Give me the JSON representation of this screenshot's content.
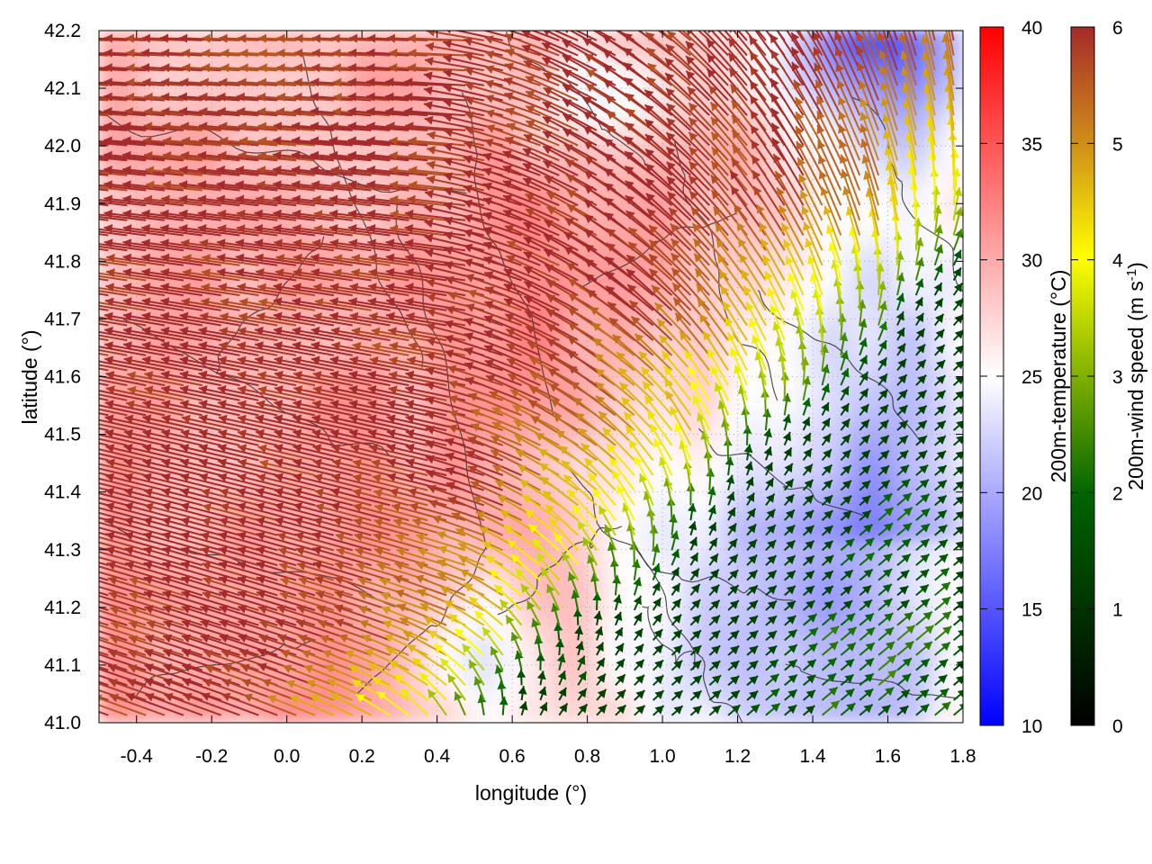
{
  "chart_data": {
    "type": "heatmap",
    "title": "",
    "xlabel": "longitude (°)",
    "ylabel": "latitude (°)",
    "xlim": [
      -0.5,
      1.8
    ],
    "ylim": [
      41.0,
      42.2
    ],
    "x_ticks": [
      "-0.4",
      "-0.2",
      "0.0",
      "0.2",
      "0.4",
      "0.6",
      "0.8",
      "1.0",
      "1.2",
      "1.4",
      "1.6",
      "1.8"
    ],
    "x_tick_values": [
      -0.4,
      -0.2,
      0.0,
      0.2,
      0.4,
      0.6,
      0.8,
      1.0,
      1.2,
      1.4,
      1.6,
      1.8
    ],
    "y_ticks": [
      "41.0",
      "41.1",
      "41.2",
      "41.3",
      "41.4",
      "41.5",
      "41.6",
      "41.7",
      "41.8",
      "41.9",
      "42.0",
      "42.1",
      "42.2"
    ],
    "y_tick_values": [
      41.0,
      41.1,
      41.2,
      41.3,
      41.4,
      41.5,
      41.6,
      41.7,
      41.8,
      41.9,
      42.0,
      42.1,
      42.2
    ],
    "temperature_colorbar": {
      "label": "200m-temperature (°C)",
      "range": [
        10,
        40
      ],
      "ticks": [
        "10",
        "15",
        "20",
        "25",
        "30",
        "35",
        "40"
      ],
      "tick_values": [
        10,
        15,
        20,
        25,
        30,
        35,
        40
      ],
      "colors": [
        "#0000ff",
        "#ffffff",
        "#ff0000"
      ]
    },
    "wind_colorbar": {
      "label_main": "200m-wind speed (m s",
      "label_sup": "-1",
      "label_end": ")",
      "range": [
        0,
        6
      ],
      "ticks": [
        "0",
        "1",
        "2",
        "3",
        "4",
        "5",
        "6"
      ],
      "tick_values": [
        0,
        1,
        2,
        3,
        4,
        5,
        6
      ],
      "colors": [
        "#000000",
        "#006400",
        "#80b000",
        "#ffff00",
        "#d09018",
        "#a52a2a"
      ]
    },
    "series": [
      {
        "name": "200m-temperature",
        "kind": "filled field",
        "pattern": "warm (28-32 °C) west and north-west of ~0.8°E, cool (17-22 °C) in the south-east quadrant and north-east corner near 1.5°E 42.2°N"
      },
      {
        "name": "terrain elevation",
        "kind": "contour lines",
        "color": "#333333"
      },
      {
        "name": "200m-wind",
        "kind": "vector field",
        "pattern": "strong (≈6 m/s) north-westward flow over most of the domain, weak (≈1-2 m/s) north-eastward flow south-east of 1.2°E 41.25°N, transition band with 3-5 m/s"
      }
    ]
  }
}
